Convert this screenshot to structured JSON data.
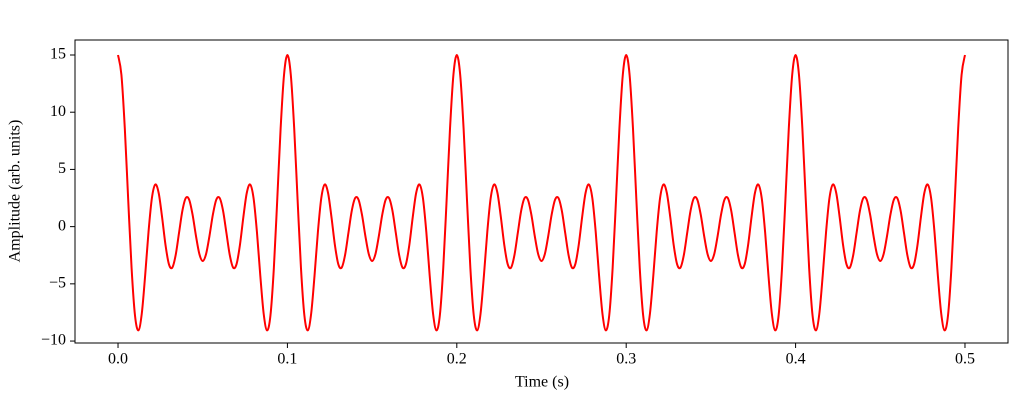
{
  "chart_data": {
    "type": "line",
    "xlabel": "Time (s)",
    "ylabel": "Amplitude (arb. units)",
    "xlim": [
      -0.0254,
      0.5254
    ],
    "ylim": [
      -10.17,
      16.31
    ],
    "xticks": [
      {
        "value": 0,
        "label": "0.0"
      },
      0.1,
      0.2,
      0.3,
      0.4,
      0.5
    ],
    "yticks": [
      {
        "value": -10,
        "label": "−10"
      },
      {
        "value": -5,
        "label": "−5"
      },
      0,
      5,
      10,
      15
    ],
    "grid": false,
    "x": [
      0,
      0.002,
      0.004,
      0.006,
      0.008,
      0.01,
      0.012,
      0.014,
      0.016,
      0.018,
      0.02,
      0.022,
      0.024,
      0.026,
      0.028,
      0.03,
      0.032,
      0.034,
      0.036,
      0.038,
      0.04,
      0.042,
      0.044,
      0.046,
      0.048,
      0.05,
      0.052,
      0.054,
      0.056,
      0.058,
      0.06,
      0.062,
      0.064,
      0.066,
      0.068,
      0.07,
      0.072,
      0.074,
      0.076,
      0.078,
      0.08,
      0.082,
      0.084,
      0.086,
      0.088,
      0.09,
      0.092,
      0.094,
      0.096,
      0.098,
      0.1,
      0.102,
      0.104,
      0.106,
      0.108,
      0.11,
      0.112,
      0.114,
      0.116,
      0.118,
      0.12,
      0.122,
      0.124,
      0.126,
      0.128,
      0.13,
      0.132,
      0.134,
      0.136,
      0.138,
      0.14,
      0.142,
      0.144,
      0.146,
      0.148,
      0.15,
      0.152,
      0.154,
      0.156,
      0.158,
      0.16,
      0.162,
      0.164,
      0.166,
      0.168,
      0.17,
      0.172,
      0.174,
      0.176,
      0.178,
      0.18,
      0.182,
      0.184,
      0.186,
      0.188,
      0.19,
      0.192,
      0.194,
      0.196,
      0.198,
      0.2,
      0.202,
      0.204,
      0.206,
      0.208,
      0.21,
      0.212,
      0.214,
      0.216,
      0.218,
      0.22,
      0.222,
      0.224,
      0.226,
      0.228,
      0.23,
      0.232,
      0.234,
      0.236,
      0.238,
      0.24,
      0.242,
      0.244,
      0.246,
      0.248,
      0.25,
      0.252,
      0.254,
      0.256,
      0.258,
      0.26,
      0.262,
      0.264,
      0.266,
      0.268,
      0.27,
      0.272,
      0.274,
      0.276,
      0.278,
      0.28,
      0.282,
      0.284,
      0.286,
      0.288,
      0.29,
      0.292,
      0.294,
      0.296,
      0.298,
      0.3,
      0.302,
      0.304,
      0.306,
      0.308,
      0.31,
      0.312,
      0.314,
      0.316,
      0.318,
      0.32,
      0.322,
      0.324,
      0.326,
      0.328,
      0.33,
      0.332,
      0.334,
      0.336,
      0.338,
      0.34,
      0.342,
      0.344,
      0.346,
      0.348,
      0.35,
      0.352,
      0.354,
      0.356,
      0.358,
      0.36,
      0.362,
      0.364,
      0.366,
      0.368,
      0.37,
      0.372,
      0.374,
      0.376,
      0.378,
      0.38,
      0.382,
      0.384,
      0.386,
      0.388,
      0.39,
      0.392,
      0.394,
      0.396,
      0.398,
      0.4,
      0.402,
      0.404,
      0.406,
      0.408,
      0.41,
      0.412,
      0.414,
      0.416,
      0.418,
      0.42,
      0.422,
      0.424,
      0.426,
      0.428,
      0.43,
      0.432,
      0.434,
      0.436,
      0.438,
      0.44,
      0.442,
      0.444,
      0.446,
      0.448,
      0.45,
      0.452,
      0.454,
      0.456,
      0.458,
      0.46,
      0.462,
      0.464,
      0.466,
      0.468,
      0.47,
      0.472,
      0.474,
      0.476,
      0.478,
      0.48,
      0.482,
      0.484,
      0.486,
      0.488,
      0.49,
      0.492,
      0.494,
      0.496,
      0.498,
      0.5
    ],
    "series": [
      {
        "color": "#ff0000",
        "values": [
          15,
          13.27,
          8.6,
          2.37,
          -3.61,
          -7.74,
          -9.07,
          -7.63,
          -4.3,
          -0.46,
          2.5,
          3.68,
          2.94,
          0.84,
          -1.57,
          -3.26,
          -3.59,
          -2.51,
          -0.56,
          1.39,
          2.5,
          2.35,
          1.05,
          -0.8,
          -2.38,
          -3,
          -2.38,
          -0.8,
          1.05,
          2.35,
          2.5,
          1.39,
          -0.56,
          -2.51,
          -3.59,
          -3.26,
          -1.57,
          0.84,
          2.94,
          3.68,
          2.5,
          -0.46,
          -4.3,
          -7.63,
          -9.07,
          -7.74,
          -3.61,
          2.37,
          8.6,
          13.27,
          15,
          13.27,
          8.6,
          2.37,
          -3.61,
          -7.74,
          -9.07,
          -7.63,
          -4.3,
          -0.46,
          2.5,
          3.68,
          2.94,
          0.84,
          -1.57,
          -3.26,
          -3.59,
          -2.51,
          -0.56,
          1.39,
          2.5,
          2.35,
          1.05,
          -0.8,
          -2.38,
          -3,
          -2.38,
          -0.8,
          1.05,
          2.35,
          2.5,
          1.39,
          -0.56,
          -2.51,
          -3.59,
          -3.26,
          -1.57,
          0.84,
          2.94,
          3.68,
          2.5,
          -0.46,
          -4.3,
          -7.63,
          -9.07,
          -7.74,
          -3.61,
          2.37,
          8.6,
          13.27,
          15,
          13.27,
          8.6,
          2.37,
          -3.61,
          -7.74,
          -9.07,
          -7.63,
          -4.3,
          -0.46,
          2.5,
          3.68,
          2.94,
          0.84,
          -1.57,
          -3.26,
          -3.59,
          -2.51,
          -0.56,
          1.39,
          2.5,
          2.35,
          1.05,
          -0.8,
          -2.38,
          -3,
          -2.38,
          -0.8,
          1.05,
          2.35,
          2.5,
          1.39,
          -0.56,
          -2.51,
          -3.59,
          -3.26,
          -1.57,
          0.84,
          2.94,
          3.68,
          2.5,
          -0.46,
          -4.3,
          -7.63,
          -9.07,
          -7.74,
          -3.61,
          2.37,
          8.6,
          13.27,
          15,
          13.27,
          8.6,
          2.37,
          -3.61,
          -7.74,
          -9.07,
          -7.63,
          -4.3,
          -0.46,
          2.5,
          3.68,
          2.94,
          0.84,
          -1.57,
          -3.26,
          -3.59,
          -2.51,
          -0.56,
          1.39,
          2.5,
          2.35,
          1.05,
          -0.8,
          -2.38,
          -3,
          -2.38,
          -0.8,
          1.05,
          2.35,
          2.5,
          1.39,
          -0.56,
          -2.51,
          -3.59,
          -3.26,
          -1.57,
          0.84,
          2.94,
          3.68,
          2.5,
          -0.46,
          -4.3,
          -7.63,
          -9.07,
          -7.74,
          -3.61,
          2.37,
          8.6,
          13.27,
          15,
          13.27,
          8.6,
          2.37,
          -3.61,
          -7.74,
          -9.07,
          -7.63,
          -4.3,
          -0.46,
          2.5,
          3.68,
          2.94,
          0.84,
          -1.57,
          -3.26,
          -3.59,
          -2.51,
          -0.56,
          1.39,
          2.5,
          2.35,
          1.05,
          -0.8,
          -2.38,
          -3,
          -2.38,
          -0.8,
          1.05,
          2.35,
          2.5,
          1.39,
          -0.56,
          -2.51,
          -3.59,
          -3.26,
          -1.57,
          0.84,
          2.94,
          3.68,
          2.5,
          -0.46,
          -4.3,
          -7.63,
          -9.07,
          -7.74,
          -3.61,
          2.37,
          8.6,
          13.27,
          15
        ]
      }
    ]
  }
}
